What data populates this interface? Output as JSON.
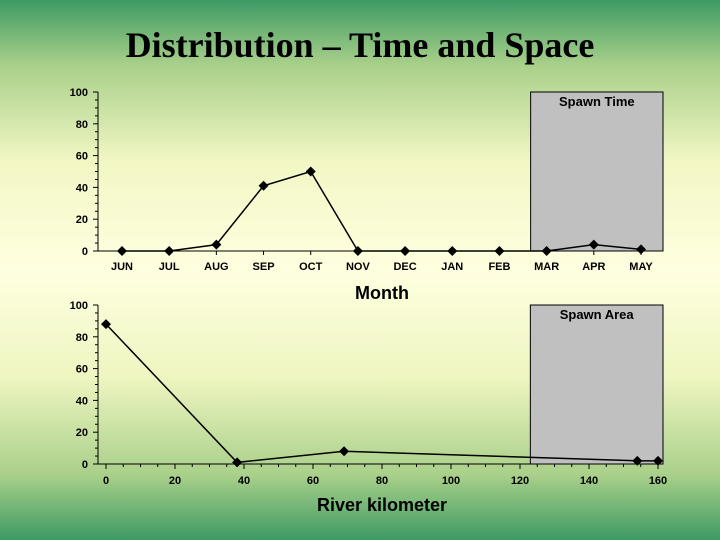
{
  "slide": {
    "title": "Distribution – Time and Space"
  },
  "chart_data": [
    {
      "type": "line",
      "categories": [
        "JUN",
        "JUL",
        "AUG",
        "SEP",
        "OCT",
        "NOV",
        "DEC",
        "JAN",
        "FEB",
        "MAR",
        "APR",
        "MAY"
      ],
      "values": [
        0,
        0,
        4,
        41,
        50,
        0,
        0,
        0,
        0,
        0,
        4,
        1
      ],
      "xlabel": "Month",
      "ylabel": "",
      "ylim": [
        0,
        100
      ],
      "yticks": [
        0,
        20,
        40,
        60,
        80,
        100
      ],
      "shaded_region": {
        "label": "Spawn Time",
        "from": "MAR",
        "to": "MAY"
      },
      "marker": "diamond",
      "grid": false
    },
    {
      "type": "line",
      "x": [
        0,
        38,
        69,
        154,
        160
      ],
      "values": [
        88,
        1,
        8,
        2,
        2
      ],
      "xlabel": "River kilometer",
      "ylabel": "",
      "xlim": [
        0,
        160
      ],
      "xticks": [
        0,
        20,
        40,
        60,
        80,
        100,
        120,
        140,
        160
      ],
      "ylim": [
        0,
        100
      ],
      "yticks": [
        0,
        20,
        40,
        60,
        80,
        100
      ],
      "shaded_region": {
        "label": "Spawn Area",
        "from": 123,
        "to": 160
      },
      "marker": "diamond",
      "grid": false
    }
  ]
}
